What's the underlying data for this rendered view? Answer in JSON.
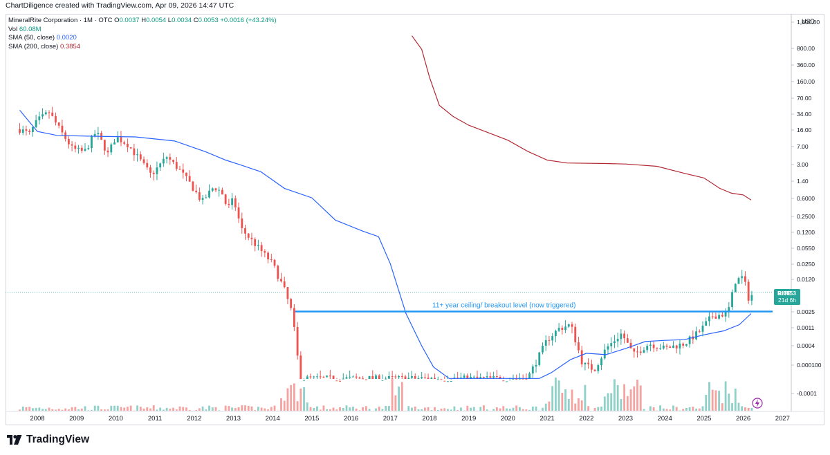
{
  "credit": "ChartDiligence created with TradingView.com, Apr 09, 2026 14:47 UTC",
  "header": {
    "symbol": "MineralRite Corporation · 1M · OTC",
    "open_label": "O",
    "open": "0.0037",
    "high_label": "H",
    "high": "0.0054",
    "low_label": "L",
    "low": "0.0034",
    "close_label": "C",
    "close": "0.0053",
    "change": "+0.0016 (+43.24%)",
    "vol_label": "Vol",
    "vol": "60.08M",
    "sma50_label": "SMA (50, close)",
    "sma50": "0.0020",
    "sma200_label": "SMA (200, close)",
    "sma200": "0.3854"
  },
  "currency": "USD",
  "price_tag": {
    "ticker": "RITE",
    "price": "0.0053",
    "countdown": "21d 6h"
  },
  "brand": "TradingView",
  "colors": {
    "up": "#26a69a",
    "down": "#ef5350",
    "vol_up": "#8fd1c9",
    "vol_down": "#f5a3a1",
    "sma50": "#2962ff",
    "sma200": "#b22833",
    "level": "#2196f3"
  },
  "chart_data": {
    "type": "candlestick",
    "title": "MineralRite Corporation · 1M · OTC",
    "yscale": "log",
    "y_tick_labels": [
      "1,800.00",
      "800.00",
      "360.00",
      "160.00",
      "70.00",
      "34.00",
      "16.00",
      "7.00",
      "3.00",
      "1.40",
      "0.6000",
      "0.2500",
      "0.1200",
      "0.0550",
      "0.0250",
      "0.0120",
      "0.0025",
      "0.0011",
      "0.0004",
      "0.000100",
      "-0.0001"
    ],
    "x_tick_labels": [
      "2008",
      "2009",
      "2010",
      "2011",
      "2012",
      "2013",
      "2014",
      "2015",
      "2016",
      "2017",
      "2018",
      "2019",
      "2020",
      "2021",
      "2022",
      "2023",
      "2024",
      "2025",
      "2026",
      "2027"
    ],
    "annotation": "11+ year ceiling/ breakout level (now triggered)",
    "breakout_level": 0.0022,
    "last_close": 0.0053,
    "sma200_points": [
      [
        2017.55,
        750
      ],
      [
        2017.8,
        400
      ],
      [
        2018.0,
        110
      ],
      [
        2018.25,
        30
      ],
      [
        2018.6,
        18
      ],
      [
        2019.0,
        12
      ],
      [
        2019.5,
        8.5
      ],
      [
        2020.0,
        6
      ],
      [
        2020.5,
        3.6
      ],
      [
        2021.0,
        2.4
      ],
      [
        2021.5,
        2.1
      ],
      [
        2022.5,
        2.05
      ],
      [
        2023.0,
        2.0
      ],
      [
        2023.8,
        1.8
      ],
      [
        2024.5,
        1.3
      ],
      [
        2025.0,
        1.05
      ],
      [
        2025.4,
        0.65
      ],
      [
        2025.7,
        0.52
      ],
      [
        2026.0,
        0.48
      ],
      [
        2026.2,
        0.38
      ]
    ],
    "sma50_points": [
      [
        2007.55,
        24
      ],
      [
        2008.0,
        9
      ],
      [
        2008.5,
        7.5
      ],
      [
        2009.5,
        7.2
      ],
      [
        2010.5,
        7.0
      ],
      [
        2011.5,
        5.8
      ],
      [
        2012.3,
        3.5
      ],
      [
        2012.8,
        2.4
      ],
      [
        2013.2,
        1.9
      ],
      [
        2013.7,
        1.4
      ],
      [
        2014.3,
        0.65
      ],
      [
        2015.0,
        0.42
      ],
      [
        2015.6,
        0.15
      ],
      [
        2016.3,
        0.09
      ],
      [
        2016.7,
        0.07
      ],
      [
        2017.0,
        0.02
      ],
      [
        2017.4,
        0.002
      ],
      [
        2017.8,
        0.00045
      ],
      [
        2018.1,
        0.00017
      ],
      [
        2018.5,
        0.0001
      ],
      [
        2019.0,
        0.0001
      ],
      [
        2020.0,
        0.0001
      ],
      [
        2020.8,
        0.0001
      ],
      [
        2021.1,
        0.00013
      ],
      [
        2021.6,
        0.00024
      ],
      [
        2022.0,
        0.00032
      ],
      [
        2022.5,
        0.0003
      ],
      [
        2023.0,
        0.0004
      ],
      [
        2023.5,
        0.00055
      ],
      [
        2024.0,
        0.00058
      ],
      [
        2024.5,
        0.0006
      ],
      [
        2025.0,
        0.00075
      ],
      [
        2025.5,
        0.0009
      ],
      [
        2025.9,
        0.0012
      ],
      [
        2026.2,
        0.002
      ]
    ]
  }
}
